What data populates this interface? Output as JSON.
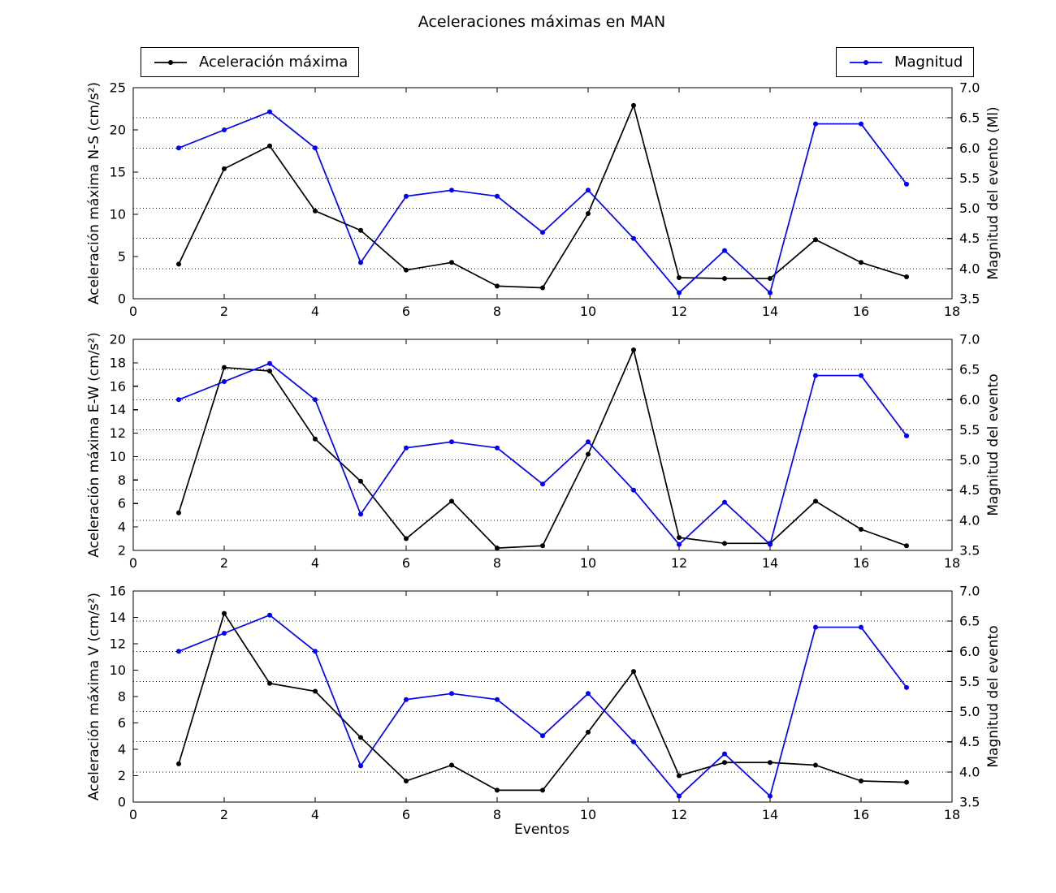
{
  "title": "Aceleraciones máximas en MAN",
  "xlabel": "Eventos",
  "legends": {
    "acceleration": "Aceleración máxima",
    "magnitude": "Magnitud"
  },
  "colors": {
    "acceleration": "#000000",
    "magnitude": "#0000ff",
    "grid": "#000000"
  },
  "chart_data": [
    {
      "type": "line",
      "subplot": 1,
      "ylabel": "Aceleración máxima N-S (cm/s²)",
      "y2label": "Magnitud del evento (Ml)",
      "xlim": [
        0,
        18
      ],
      "xticks": [
        0,
        2,
        4,
        6,
        8,
        10,
        12,
        14,
        16,
        18
      ],
      "ylim": [
        0,
        25
      ],
      "yticks": [
        0,
        5,
        10,
        15,
        20,
        25
      ],
      "y2lim": [
        3.5,
        7.0
      ],
      "y2ticks": [
        3.5,
        4.0,
        4.5,
        5.0,
        5.5,
        6.0,
        6.5,
        7.0
      ],
      "grid": {
        "axis": "y2",
        "ticks": [
          4.0,
          4.5,
          5.0,
          5.5,
          6.0,
          6.5
        ],
        "style": "dotted"
      },
      "x": [
        1,
        2,
        3,
        4,
        5,
        6,
        7,
        8,
        9,
        10,
        11,
        12,
        13,
        14,
        15,
        16,
        17
      ],
      "series": [
        {
          "name": "Aceleración máxima",
          "axis": "left",
          "color": "#000000",
          "values": [
            4.1,
            15.4,
            18.1,
            10.4,
            8.1,
            3.4,
            4.3,
            1.5,
            1.3,
            10.1,
            22.9,
            2.5,
            2.4,
            2.4,
            7.0,
            4.3,
            2.6
          ]
        },
        {
          "name": "Magnitud",
          "axis": "right",
          "color": "#0000ff",
          "values": [
            6.0,
            6.3,
            6.6,
            6.0,
            4.1,
            5.2,
            5.3,
            5.2,
            4.6,
            5.3,
            4.5,
            3.6,
            4.3,
            3.6,
            6.4,
            6.4,
            5.4
          ]
        }
      ]
    },
    {
      "type": "line",
      "subplot": 2,
      "ylabel": "Aceleración máxima E-W (cm/s²)",
      "y2label": "Magnitud del evento",
      "xlim": [
        0,
        18
      ],
      "xticks": [
        0,
        2,
        4,
        6,
        8,
        10,
        12,
        14,
        16,
        18
      ],
      "ylim": [
        2,
        20
      ],
      "yticks": [
        2,
        4,
        6,
        8,
        10,
        12,
        14,
        16,
        18,
        20
      ],
      "y2lim": [
        3.5,
        7.0
      ],
      "y2ticks": [
        3.5,
        4.0,
        4.5,
        5.0,
        5.5,
        6.0,
        6.5,
        7.0
      ],
      "grid": {
        "axis": "y2",
        "ticks": [
          4.0,
          4.5,
          5.0,
          5.5,
          6.0,
          6.5
        ],
        "style": "dotted"
      },
      "x": [
        1,
        2,
        3,
        4,
        5,
        6,
        7,
        8,
        9,
        10,
        11,
        12,
        13,
        14,
        15,
        16,
        17
      ],
      "series": [
        {
          "name": "Aceleración máxima",
          "axis": "left",
          "color": "#000000",
          "values": [
            5.2,
            17.6,
            17.3,
            11.5,
            7.9,
            3.0,
            6.2,
            2.2,
            2.4,
            10.2,
            19.1,
            3.1,
            2.6,
            2.6,
            6.2,
            3.8,
            2.4
          ]
        },
        {
          "name": "Magnitud",
          "axis": "right",
          "color": "#0000ff",
          "values": [
            6.0,
            6.3,
            6.6,
            6.0,
            4.1,
            5.2,
            5.3,
            5.2,
            4.6,
            5.3,
            4.5,
            3.6,
            4.3,
            3.6,
            6.4,
            6.4,
            5.4
          ]
        }
      ]
    },
    {
      "type": "line",
      "subplot": 3,
      "xlabel": "Eventos",
      "ylabel": "Aceleración máxima V (cm/s²)",
      "y2label": "Magnitud del evento",
      "xlim": [
        0,
        18
      ],
      "xticks": [
        0,
        2,
        4,
        6,
        8,
        10,
        12,
        14,
        16,
        18
      ],
      "ylim": [
        0,
        16
      ],
      "yticks": [
        0,
        2,
        4,
        6,
        8,
        10,
        12,
        14,
        16
      ],
      "y2lim": [
        3.5,
        7.0
      ],
      "y2ticks": [
        3.5,
        4.0,
        4.5,
        5.0,
        5.5,
        6.0,
        6.5,
        7.0
      ],
      "grid": {
        "axis": "y2",
        "ticks": [
          4.0,
          4.5,
          5.0,
          5.5,
          6.0,
          6.5
        ],
        "style": "dotted"
      },
      "x": [
        1,
        2,
        3,
        4,
        5,
        6,
        7,
        8,
        9,
        10,
        11,
        12,
        13,
        14,
        15,
        16,
        17
      ],
      "series": [
        {
          "name": "Aceleración máxima",
          "axis": "left",
          "color": "#000000",
          "values": [
            2.9,
            14.3,
            9.0,
            8.4,
            4.9,
            1.6,
            2.8,
            0.9,
            0.9,
            5.3,
            9.9,
            2.0,
            3.0,
            3.0,
            2.8,
            1.6,
            1.5
          ]
        },
        {
          "name": "Magnitud",
          "axis": "right",
          "color": "#0000ff",
          "values": [
            6.0,
            6.3,
            6.6,
            6.0,
            4.1,
            5.2,
            5.3,
            5.2,
            4.6,
            5.3,
            4.5,
            3.6,
            4.3,
            3.6,
            6.4,
            6.4,
            5.4
          ]
        }
      ]
    }
  ]
}
